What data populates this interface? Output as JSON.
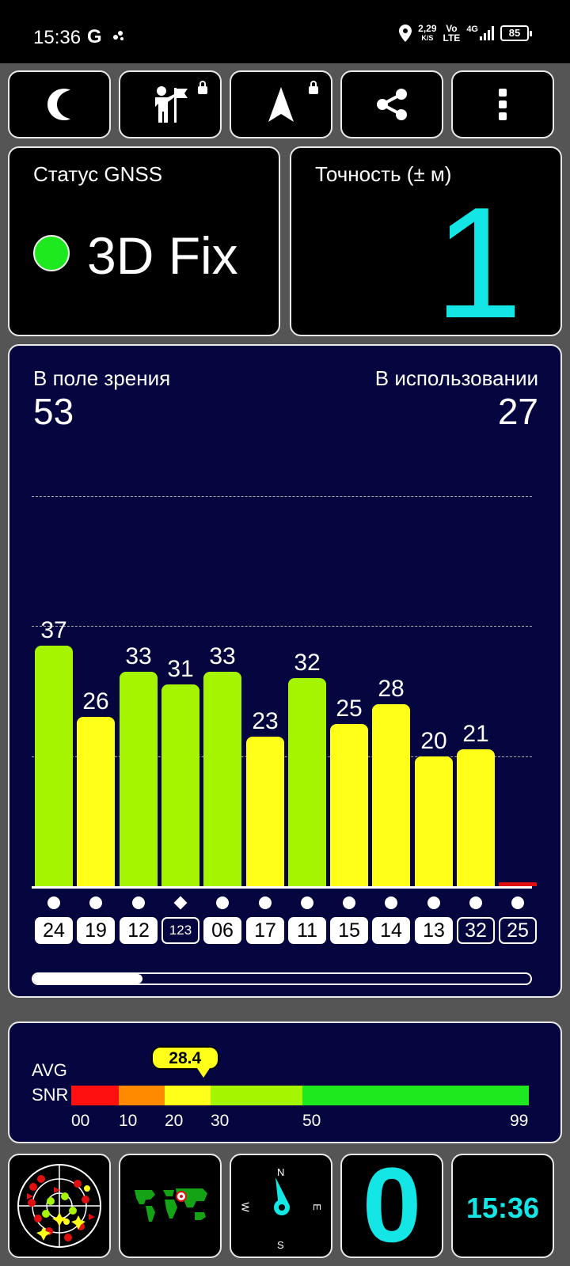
{
  "status_bar": {
    "time": "15:36",
    "g_icon": "G",
    "speed_value": "2,29",
    "speed_unit": "K/S",
    "volte_top": "Vo",
    "volte_bottom": "LTE",
    "network": "4G",
    "battery": "85"
  },
  "toolbar": {
    "icons": [
      "moon-icon",
      "person-flag-icon",
      "navigation-arrow-icon",
      "share-icon",
      "more-vert-icon"
    ]
  },
  "gnss": {
    "label": "Статус GNSS",
    "value": "3D Fix",
    "dot_color": "#1ee81e"
  },
  "accuracy": {
    "label": "Точность (± м)",
    "value": "1",
    "color": "#14e6e6"
  },
  "satellites": {
    "in_view_label": "В поле зрения",
    "in_view": "53",
    "in_use_label": "В использовании",
    "in_use": "27"
  },
  "chart_data": {
    "type": "bar",
    "categories": [
      "24",
      "19",
      "12",
      "123",
      "06",
      "17",
      "11",
      "15",
      "14",
      "13",
      "32",
      "25"
    ],
    "values": [
      37,
      26,
      33,
      31,
      33,
      23,
      32,
      25,
      28,
      20,
      21,
      0
    ],
    "value_labels": [
      "37",
      "26",
      "33",
      "31",
      "33",
      "23",
      "32",
      "25",
      "28",
      "20",
      "21",
      ""
    ],
    "used": [
      true,
      true,
      true,
      false,
      true,
      true,
      true,
      true,
      true,
      true,
      false,
      false
    ],
    "marker": [
      "circle",
      "circle",
      "circle",
      "diamond",
      "circle",
      "circle",
      "circle",
      "circle",
      "circle",
      "circle",
      "circle",
      "circle"
    ],
    "ylim": [
      0,
      60
    ],
    "grid_values": [
      20,
      40,
      60
    ],
    "color_rule": {
      "below_30": "#ffff1a",
      "30_to_50": "#a6f500",
      "zero": "#e01010"
    },
    "scroll_position": 0.22
  },
  "snr": {
    "label_top": "AVG",
    "label_bottom": "SNR",
    "value": "28.4",
    "value_num": 28.4,
    "ticks": [
      "00",
      "10",
      "20",
      "30",
      "50",
      "99"
    ],
    "tick_values": [
      0,
      10,
      20,
      30,
      50,
      99
    ],
    "segments": [
      {
        "from": 0,
        "to": 10,
        "color": "#ff1010"
      },
      {
        "from": 10,
        "to": 20,
        "color": "#ff8a00"
      },
      {
        "from": 20,
        "to": 30,
        "color": "#ffff1a"
      },
      {
        "from": 30,
        "to": 50,
        "color": "#a6f500"
      },
      {
        "from": 50,
        "to": 99,
        "color": "#1ee81e"
      }
    ]
  },
  "bottom_tiles": {
    "radar_icon": "sky-radar-icon",
    "map_icon": "world-map-icon",
    "compass": {
      "n": "N",
      "e": "E",
      "s": "S",
      "w": "W"
    },
    "speed": "0",
    "clock": "15:36"
  }
}
